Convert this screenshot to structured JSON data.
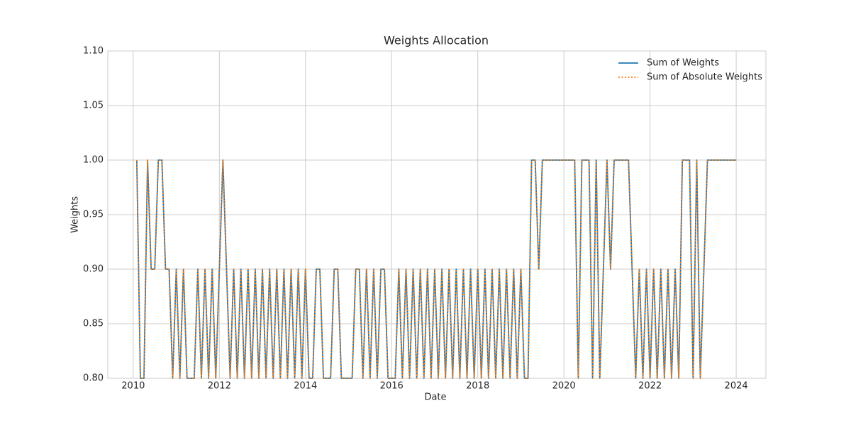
{
  "chart_data": {
    "type": "line",
    "title": "Weights Allocation",
    "x_label": "Date",
    "y_label": "Weights",
    "x": [
      "2010-02",
      "2010-03",
      "2010-04",
      "2010-05",
      "2010-06",
      "2010-07",
      "2010-08",
      "2010-09",
      "2010-10",
      "2010-11",
      "2010-12",
      "2011-01",
      "2011-02",
      "2011-03",
      "2011-04",
      "2011-05",
      "2011-06",
      "2011-07",
      "2011-08",
      "2011-09",
      "2011-10",
      "2011-11",
      "2011-12",
      "2012-01",
      "2012-02",
      "2012-03",
      "2012-04",
      "2012-05",
      "2012-06",
      "2012-07",
      "2012-08",
      "2012-09",
      "2012-10",
      "2012-11",
      "2012-12",
      "2013-01",
      "2013-02",
      "2013-03",
      "2013-04",
      "2013-05",
      "2013-06",
      "2013-07",
      "2013-08",
      "2013-09",
      "2013-10",
      "2013-11",
      "2013-12",
      "2014-01",
      "2014-02",
      "2014-03",
      "2014-04",
      "2014-05",
      "2014-06",
      "2014-07",
      "2014-08",
      "2014-09",
      "2014-10",
      "2014-11",
      "2014-12",
      "2015-01",
      "2015-02",
      "2015-03",
      "2015-04",
      "2015-05",
      "2015-06",
      "2015-07",
      "2015-08",
      "2015-09",
      "2015-10",
      "2015-11",
      "2015-12",
      "2016-01",
      "2016-02",
      "2016-03",
      "2016-04",
      "2016-05",
      "2016-06",
      "2016-07",
      "2016-08",
      "2016-09",
      "2016-10",
      "2016-11",
      "2016-12",
      "2017-01",
      "2017-02",
      "2017-03",
      "2017-04",
      "2017-05",
      "2017-06",
      "2017-07",
      "2017-08",
      "2017-09",
      "2017-10",
      "2017-11",
      "2017-12",
      "2018-01",
      "2018-02",
      "2018-03",
      "2018-04",
      "2018-05",
      "2018-06",
      "2018-07",
      "2018-08",
      "2018-09",
      "2018-10",
      "2018-11",
      "2018-12",
      "2019-01",
      "2019-02",
      "2019-03",
      "2019-04",
      "2019-05",
      "2019-06",
      "2019-07",
      "2019-08",
      "2019-09",
      "2019-10",
      "2019-11",
      "2019-12",
      "2020-01",
      "2020-02",
      "2020-03",
      "2020-04",
      "2020-05",
      "2020-06",
      "2020-07",
      "2020-08",
      "2020-09",
      "2020-10",
      "2020-11",
      "2020-12",
      "2021-01",
      "2021-02",
      "2021-03",
      "2021-04",
      "2021-05",
      "2021-06",
      "2021-07",
      "2021-08",
      "2021-09",
      "2021-10",
      "2021-11",
      "2021-12",
      "2022-01",
      "2022-02",
      "2022-03",
      "2022-04",
      "2022-05",
      "2022-06",
      "2022-07",
      "2022-08",
      "2022-09",
      "2022-10",
      "2022-11",
      "2022-12",
      "2023-01",
      "2023-02",
      "2023-03",
      "2023-04",
      "2023-05",
      "2023-06",
      "2023-07",
      "2023-08",
      "2023-09",
      "2023-10",
      "2023-11",
      "2023-12",
      "2024-01"
    ],
    "series": [
      {
        "name": "Sum of Weights",
        "color": "#1f77b4",
        "linestyle": "solid",
        "values": [
          1,
          0.8,
          0.8,
          1,
          0.9,
          0.9,
          1,
          1,
          0.9,
          0.9,
          0.8,
          0.9,
          0.8,
          0.9,
          0.8,
          0.8,
          0.8,
          0.9,
          0.8,
          0.9,
          0.8,
          0.9,
          0.8,
          0.9,
          1,
          0.9,
          0.8,
          0.9,
          0.8,
          0.9,
          0.8,
          0.9,
          0.8,
          0.9,
          0.8,
          0.9,
          0.8,
          0.9,
          0.8,
          0.9,
          0.8,
          0.9,
          0.8,
          0.9,
          0.8,
          0.9,
          0.8,
          0.9,
          0.8,
          0.8,
          0.9,
          0.9,
          0.8,
          0.8,
          0.8,
          0.9,
          0.9,
          0.8,
          0.8,
          0.8,
          0.8,
          0.9,
          0.9,
          0.8,
          0.9,
          0.8,
          0.9,
          0.8,
          0.9,
          0.9,
          0.8,
          0.8,
          0.8,
          0.9,
          0.8,
          0.9,
          0.8,
          0.9,
          0.8,
          0.9,
          0.8,
          0.9,
          0.8,
          0.9,
          0.8,
          0.9,
          0.8,
          0.9,
          0.8,
          0.9,
          0.8,
          0.9,
          0.8,
          0.9,
          0.8,
          0.9,
          0.8,
          0.9,
          0.8,
          0.9,
          0.8,
          0.9,
          0.8,
          0.9,
          0.8,
          0.9,
          0.8,
          0.9,
          0.8,
          0.8,
          1,
          1,
          0.9,
          1,
          1,
          1,
          1,
          1,
          1,
          1,
          1,
          1,
          1,
          0.8,
          1,
          1,
          1,
          0.8,
          1,
          0.8,
          0.9,
          1,
          0.9,
          1,
          1,
          1,
          1,
          1,
          0.9,
          0.8,
          0.9,
          0.8,
          0.9,
          0.8,
          0.9,
          0.8,
          0.9,
          0.8,
          0.9,
          0.8,
          0.9,
          0.8,
          1,
          1,
          1,
          0.8,
          1,
          0.8,
          0.9,
          1,
          1,
          1,
          1,
          1,
          1,
          1,
          1,
          1
        ]
      },
      {
        "name": "Sum of Absolute Weights",
        "color": "#ff7f0e",
        "linestyle": "dotted",
        "values": [
          1,
          0.8,
          0.8,
          1,
          0.9,
          0.9,
          1,
          1,
          0.9,
          0.9,
          0.8,
          0.9,
          0.8,
          0.9,
          0.8,
          0.8,
          0.8,
          0.9,
          0.8,
          0.9,
          0.8,
          0.9,
          0.8,
          0.9,
          1,
          0.9,
          0.8,
          0.9,
          0.8,
          0.9,
          0.8,
          0.9,
          0.8,
          0.9,
          0.8,
          0.9,
          0.8,
          0.9,
          0.8,
          0.9,
          0.8,
          0.9,
          0.8,
          0.9,
          0.8,
          0.9,
          0.8,
          0.9,
          0.8,
          0.8,
          0.9,
          0.9,
          0.8,
          0.8,
          0.8,
          0.9,
          0.9,
          0.8,
          0.8,
          0.8,
          0.8,
          0.9,
          0.9,
          0.8,
          0.9,
          0.8,
          0.9,
          0.8,
          0.9,
          0.9,
          0.8,
          0.8,
          0.8,
          0.9,
          0.8,
          0.9,
          0.8,
          0.9,
          0.8,
          0.9,
          0.8,
          0.9,
          0.8,
          0.9,
          0.8,
          0.9,
          0.8,
          0.9,
          0.8,
          0.9,
          0.8,
          0.9,
          0.8,
          0.9,
          0.8,
          0.9,
          0.8,
          0.9,
          0.8,
          0.9,
          0.8,
          0.9,
          0.8,
          0.9,
          0.8,
          0.9,
          0.8,
          0.9,
          0.8,
          0.8,
          1,
          1,
          0.9,
          1,
          1,
          1,
          1,
          1,
          1,
          1,
          1,
          1,
          1,
          0.8,
          1,
          1,
          1,
          0.8,
          1,
          0.8,
          0.9,
          1,
          0.9,
          1,
          1,
          1,
          1,
          1,
          0.9,
          0.8,
          0.9,
          0.8,
          0.9,
          0.8,
          0.9,
          0.8,
          0.9,
          0.8,
          0.9,
          0.8,
          0.9,
          0.8,
          1,
          1,
          1,
          0.8,
          1,
          0.8,
          0.9,
          1,
          1,
          1,
          1,
          1,
          1,
          1,
          1,
          1
        ]
      }
    ],
    "xlim": [
      2009.41,
      2024.69
    ],
    "xticks": [
      2010,
      2012,
      2014,
      2016,
      2018,
      2020,
      2022,
      2024
    ],
    "ylim": [
      0.8,
      1.1
    ],
    "yticks": [
      {
        "value": 0.8,
        "label": "0.80"
      },
      {
        "value": 0.85,
        "label": "0.85"
      },
      {
        "value": 0.9,
        "label": "0.90"
      },
      {
        "value": 0.95,
        "label": "0.95"
      },
      {
        "value": 1.0,
        "label": "1.00"
      },
      {
        "value": 1.05,
        "label": "1.05"
      },
      {
        "value": 1.1,
        "label": "1.10"
      }
    ],
    "grid": true,
    "legend": "upper right"
  }
}
